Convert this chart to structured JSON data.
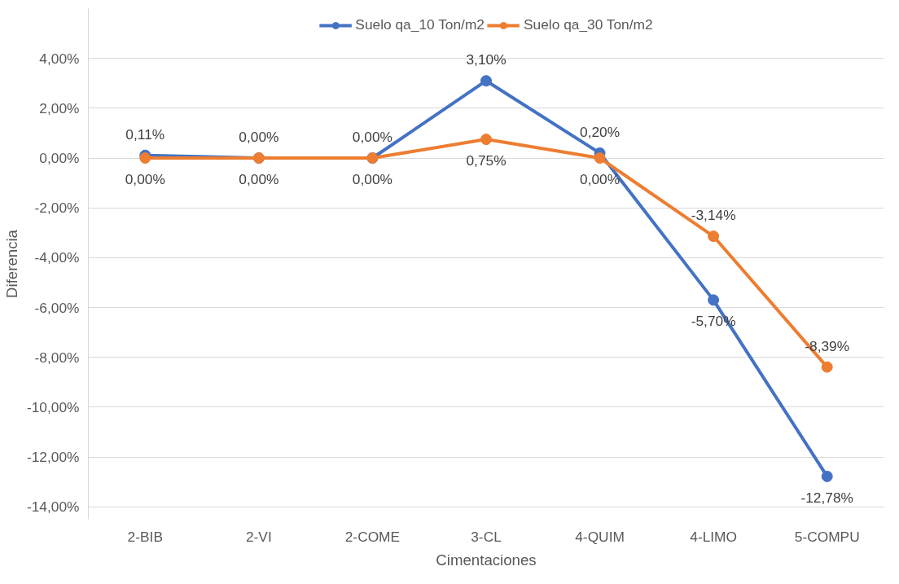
{
  "chart_data": {
    "type": "line",
    "xlabel": "Cimentaciones",
    "ylabel": "Diferencia",
    "categories": [
      "2-BIB",
      "2-VI",
      "2-COME",
      "3-CL",
      "4-QUIM",
      "4-LIMO",
      "5-COMPU"
    ],
    "series": [
      {
        "name": "Suelo qa_10 Ton/m2",
        "color": "#4472c4",
        "values": [
          0.11,
          0.0,
          0.0,
          3.1,
          0.2,
          -5.7,
          -12.78
        ],
        "value_labels": [
          "0,11%",
          "0,00%",
          "0,00%",
          "3,10%",
          "0,20%",
          "-5,70%",
          "-12,78%"
        ]
      },
      {
        "name": "Suelo qa_30 Ton/m2",
        "color": "#ed7d31",
        "values": [
          0.0,
          0.0,
          0.0,
          0.75,
          0.0,
          -3.14,
          -8.39
        ],
        "value_labels": [
          "0,00%",
          "0,00%",
          "0,00%",
          "0,75%",
          "0,00%",
          "-3,14%",
          "-8,39%"
        ]
      }
    ],
    "ylim": [
      -14.5,
      6
    ],
    "yticks": [
      {
        "value": -14,
        "label": "-14,00%"
      },
      {
        "value": -12,
        "label": "-12,00%"
      },
      {
        "value": -10,
        "label": "-10,00%"
      },
      {
        "value": -8,
        "label": "-8,00%"
      },
      {
        "value": -6,
        "label": "-6,00%"
      },
      {
        "value": -4,
        "label": "-4,00%"
      },
      {
        "value": -2,
        "label": "-2,00%"
      },
      {
        "value": 0,
        "label": "0,00%"
      },
      {
        "value": 2,
        "label": "2,00%"
      },
      {
        "value": 4,
        "label": "4,00%"
      }
    ],
    "grid": "y",
    "legend": "top",
    "marker": "circle",
    "line_style": "solid"
  }
}
